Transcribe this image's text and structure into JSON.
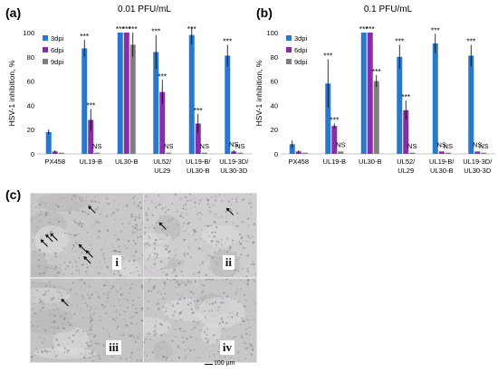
{
  "labels": {
    "a": "(a)",
    "b": "(b)",
    "c": "(c)"
  },
  "series_colors": [
    "#2878d0",
    "#8a2ea8",
    "#7f7f7f"
  ],
  "chart_data": [
    {
      "type": "bar",
      "title": "0.01 PFU/mL",
      "ylabel": "HSV-1 inhibition, %",
      "ylim": [
        0,
        100
      ],
      "yticks": [
        0,
        20,
        40,
        60,
        80,
        100
      ],
      "categories": [
        [
          "PX458"
        ],
        [
          "UL19-B"
        ],
        [
          "UL30-B"
        ],
        [
          "UL52/",
          "UL29"
        ],
        [
          "UL19-B/",
          "UL30-B"
        ],
        [
          "UL19-3D/",
          "UL30-3D"
        ]
      ],
      "legend": "top-left",
      "series": [
        {
          "name": "3dpi",
          "values": [
            18,
            87,
            100,
            84,
            98,
            81
          ],
          "err": [
            2,
            7,
            0,
            14,
            8,
            9
          ]
        },
        {
          "name": "6dpi",
          "values": [
            2,
            28,
            100,
            51,
            25,
            2
          ],
          "err": [
            1,
            9,
            0,
            10,
            8,
            1
          ]
        },
        {
          "name": "9dpi",
          "values": [
            1,
            1,
            90,
            1,
            1,
            1
          ],
          "err": [
            0.5,
            0.5,
            10,
            0.5,
            0.5,
            0.5
          ]
        }
      ],
      "annotations": [
        [
          "",
          "",
          ""
        ],
        [
          "***",
          "***",
          "NS"
        ],
        [
          "***",
          "***",
          "***"
        ],
        [
          "***",
          "***",
          "NS"
        ],
        [
          "***",
          "***",
          "NS"
        ],
        [
          "***",
          "NS",
          "NS"
        ]
      ]
    },
    {
      "type": "bar",
      "title": "0.1 PFU/mL",
      "ylabel": "HSV-1 inhibition, %",
      "ylim": [
        0,
        100
      ],
      "yticks": [
        0,
        20,
        40,
        60,
        80,
        100
      ],
      "categories": [
        [
          "PX458"
        ],
        [
          "UL19-B"
        ],
        [
          "UL30-B"
        ],
        [
          "UL52/",
          "UL29"
        ],
        [
          "UL19-B/",
          "UL30-B"
        ],
        [
          "UL19-3D/",
          "UL30-3D"
        ]
      ],
      "legend": "top-left",
      "series": [
        {
          "name": "3dpi",
          "values": [
            8,
            58,
            100,
            80,
            91,
            81
          ],
          "err": [
            3,
            20,
            0,
            10,
            8,
            9
          ]
        },
        {
          "name": "6dpi",
          "values": [
            2,
            23,
            100,
            36,
            2,
            2
          ],
          "err": [
            1,
            2,
            0,
            8,
            0.5,
            0.5
          ]
        },
        {
          "name": "9dpi",
          "values": [
            1,
            2,
            60,
            1,
            1,
            1
          ],
          "err": [
            0.5,
            0.5,
            5,
            0.5,
            0.5,
            0.5
          ]
        }
      ],
      "annotations": [
        [
          "",
          "",
          ""
        ],
        [
          "***",
          "***",
          "NS"
        ],
        [
          "***",
          "***",
          "***"
        ],
        [
          "***",
          "***",
          "NS"
        ],
        [
          "***",
          "NS",
          "NS"
        ],
        [
          "***",
          "NS",
          "NS"
        ]
      ]
    }
  ],
  "micrographs": [
    {
      "numeral": "i",
      "arrows": 7
    },
    {
      "numeral": "ii",
      "arrows": 3
    },
    {
      "numeral": "iii",
      "arrows": 1
    },
    {
      "numeral": "iv",
      "arrows": 0
    }
  ],
  "scale_bar": "100 µm"
}
